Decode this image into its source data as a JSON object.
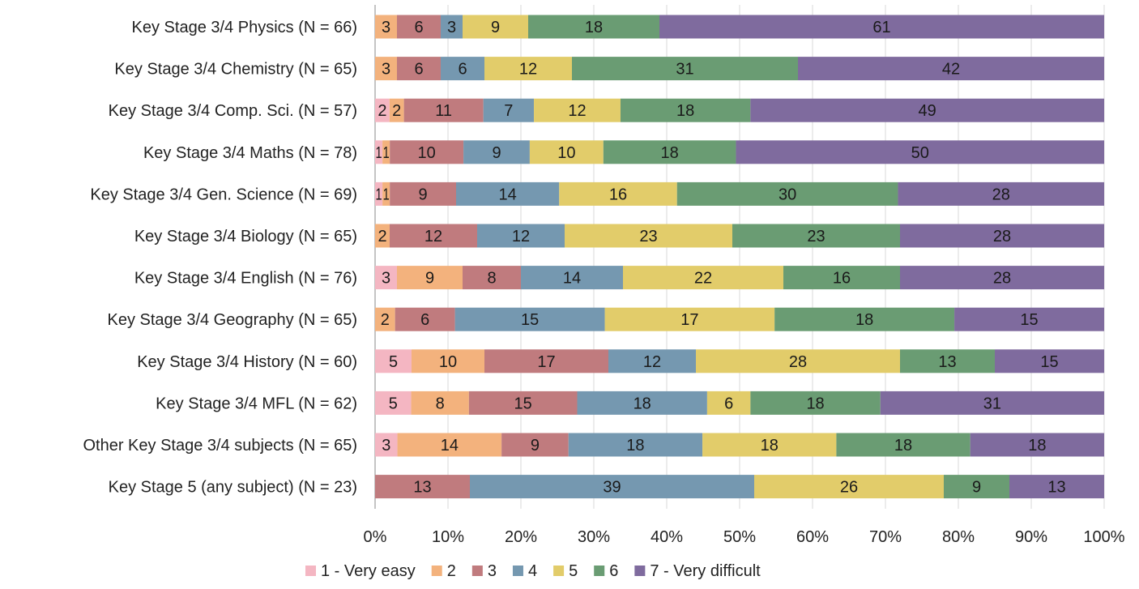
{
  "chart_data": {
    "type": "bar",
    "orientation": "horizontal",
    "stacked": "percent",
    "title": "",
    "xlabel": "",
    "ylabel": "",
    "xlim": [
      0,
      100
    ],
    "x_ticks": [
      "0%",
      "10%",
      "20%",
      "30%",
      "40%",
      "50%",
      "60%",
      "70%",
      "80%",
      "90%",
      "100%"
    ],
    "grid": "vertical",
    "legend_position": "bottom",
    "categories": [
      "Key Stage 3/4 Physics (N = 66)",
      "Key Stage 3/4 Chemistry (N = 65)",
      "Key Stage 3/4 Comp. Sci. (N = 57)",
      "Key Stage 3/4 Maths (N = 78)",
      "Key Stage 3/4 Gen. Science  (N = 69)",
      "Key Stage 3/4 Biology (N = 65)",
      "Key Stage 3/4 English (N = 76)",
      "Key Stage 3/4 Geography (N = 65)",
      "Key Stage 3/4 History (N = 60)",
      "Key Stage 3/4 MFL (N = 62)",
      "Other Key Stage 3/4 subjects (N = 65)",
      "Key Stage 5 (any subject) (N = 23)"
    ],
    "series": [
      {
        "name": "1 - Very easy",
        "color": "#f4b6c2",
        "values": [
          0,
          0,
          2,
          1,
          1,
          0,
          3,
          0,
          5,
          5,
          3,
          0
        ]
      },
      {
        "name": "2",
        "color": "#f3b27d",
        "values": [
          3,
          3,
          2,
          1,
          1,
          2,
          9,
          2,
          10,
          8,
          14,
          0
        ]
      },
      {
        "name": "3",
        "color": "#c07b7e",
        "values": [
          6,
          6,
          11,
          10,
          9,
          12,
          8,
          6,
          17,
          15,
          9,
          13
        ]
      },
      {
        "name": "4",
        "color": "#7598b0",
        "values": [
          3,
          6,
          7,
          9,
          14,
          12,
          14,
          15,
          12,
          18,
          18,
          39
        ]
      },
      {
        "name": "5",
        "color": "#e2cc6a",
        "values": [
          9,
          12,
          12,
          10,
          16,
          23,
          22,
          17,
          28,
          6,
          18,
          26
        ]
      },
      {
        "name": "6",
        "color": "#6a9c73",
        "values": [
          18,
          31,
          18,
          18,
          30,
          23,
          16,
          18,
          13,
          18,
          18,
          9
        ]
      },
      {
        "name": "7 - Very difficult",
        "color": "#7f6b9e",
        "values": [
          61,
          42,
          49,
          50,
          28,
          28,
          28,
          15,
          15,
          31,
          18,
          13
        ]
      }
    ]
  }
}
